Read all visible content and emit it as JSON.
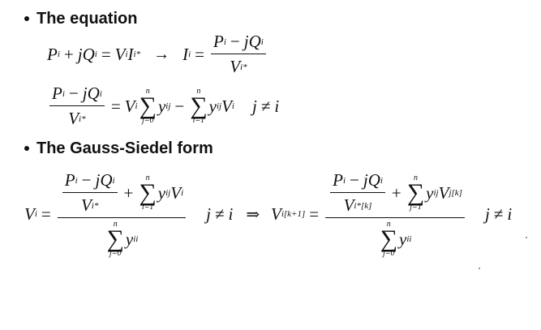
{
  "bullets": {
    "equation": "The equation",
    "gauss_seidel": "The Gauss-Siedel form"
  },
  "math": {
    "P": "P",
    "Q": "Q",
    "V": "V",
    "I": "I",
    "y": "y",
    "j": "j",
    "sub_i": "i",
    "sub_ij": "ij",
    "sub_ii": "ii",
    "star": "*",
    "plus": "+",
    "minus": "−",
    "equals": "=",
    "arrow": "→",
    "implies": "⇒",
    "neq": "≠",
    "sigma": "∑",
    "n": "n",
    "j_eq_0": "j=0",
    "j_eq_1": "j=1",
    "i_eq_1": "i=1",
    "iter_k": "[k]",
    "iter_k1": "[k+1]",
    "star_iter_k": "*[k]"
  }
}
